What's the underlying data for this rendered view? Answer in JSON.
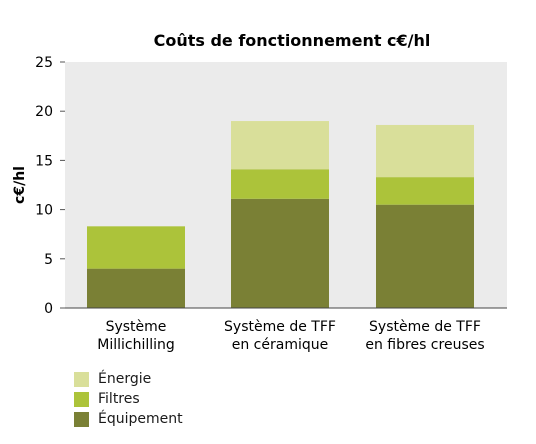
{
  "chart_data": {
    "type": "bar",
    "stacked": true,
    "title": "Coûts de fonctionnement c€/hl",
    "ylabel": "c€/hl",
    "xlabel": "",
    "ylim": [
      0,
      25
    ],
    "yticks": [
      0,
      5,
      10,
      15,
      20,
      25
    ],
    "grid": false,
    "legend_position": "bottom-left",
    "categories": [
      [
        "Système",
        "Millichilling"
      ],
      [
        "Système de TFF",
        "en céramique"
      ],
      [
        "Système de TFF",
        "en fibres creuses"
      ]
    ],
    "series": [
      {
        "name": "Équipement",
        "color": "#7a8035",
        "values": [
          4.0,
          11.1,
          10.5
        ]
      },
      {
        "name": "Filtres",
        "color": "#acc33a",
        "values": [
          4.3,
          3.0,
          2.8
        ]
      },
      {
        "name": "Énergie",
        "color": "#d9df9a",
        "values": [
          0.0,
          4.9,
          5.3
        ]
      }
    ],
    "legend_order": [
      "Énergie",
      "Filtres",
      "Équipement"
    ],
    "plot_background": "#ebebeb"
  }
}
